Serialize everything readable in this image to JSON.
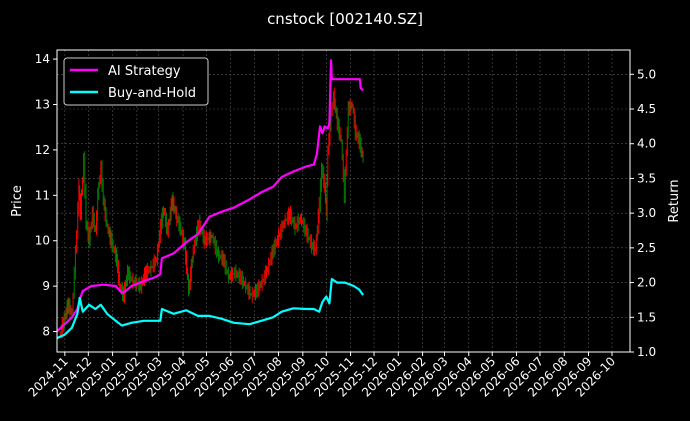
{
  "chart_data": {
    "type": "line",
    "title": "cnstock [002140.SZ]",
    "ylabel_left": "Price",
    "ylabel_right": "Return",
    "xlim": [
      "2024-10-22",
      "2026-10-24"
    ],
    "ylim_left": [
      7.55,
      14.2
    ],
    "ylim_right": [
      1.0,
      5.35
    ],
    "grid": true,
    "legend_position": "top-left",
    "x_ticks": [
      "2024-11",
      "2024-12",
      "2025-01",
      "2025-02",
      "2025-03",
      "2025-04",
      "2025-05",
      "2025-06",
      "2025-07",
      "2025-08",
      "2025-09",
      "2025-10",
      "2025-11",
      "2025-12",
      "2026-01",
      "2026-02",
      "2026-03",
      "2026-04",
      "2026-05",
      "2026-06",
      "2026-07",
      "2026-08",
      "2026-09",
      "2026-10"
    ],
    "y_ticks_left": [
      "8",
      "9",
      "10",
      "11",
      "12",
      "13",
      "14"
    ],
    "y_ticks_right": [
      "1.0",
      "1.5",
      "2.0",
      "2.5",
      "3.0",
      "3.5",
      "4.0",
      "4.5",
      "5.0"
    ],
    "price": {
      "up_color": "#ff0000",
      "down_color": "#008000",
      "dates": [
        "2024-10-25",
        "2024-10-30",
        "2024-11-05",
        "2024-11-10",
        "2024-11-13",
        "2024-11-16",
        "2024-11-19",
        "2024-11-21",
        "2024-11-25",
        "2024-11-28",
        "2024-12-02",
        "2024-12-06",
        "2024-12-10",
        "2024-12-13",
        "2024-12-17",
        "2024-12-20",
        "2024-12-25",
        "2024-12-30",
        "2025-01-06",
        "2025-01-10",
        "2025-01-15",
        "2025-01-20",
        "2025-01-27",
        "2025-02-06",
        "2025-02-12",
        "2025-02-19",
        "2025-02-26",
        "2025-03-03",
        "2025-03-07",
        "2025-03-12",
        "2025-03-18",
        "2025-03-24",
        "2025-03-28",
        "2025-04-03",
        "2025-04-08",
        "2025-04-14",
        "2025-04-21",
        "2025-04-28",
        "2025-05-08",
        "2025-05-15",
        "2025-05-22",
        "2025-05-29",
        "2025-06-06",
        "2025-06-13",
        "2025-06-20",
        "2025-06-27",
        "2025-07-04",
        "2025-07-11",
        "2025-07-18",
        "2025-07-25",
        "2025-08-01",
        "2025-08-08",
        "2025-08-15",
        "2025-08-22",
        "2025-08-29",
        "2025-09-05",
        "2025-09-12",
        "2025-09-17",
        "2025-09-22",
        "2025-09-25",
        "2025-09-29",
        "2025-10-01",
        "2025-10-03",
        "2025-10-07",
        "2025-10-10",
        "2025-10-15",
        "2025-10-20",
        "2025-10-24",
        "2025-10-29",
        "2025-11-03",
        "2025-11-07",
        "2025-11-12",
        "2025-11-17"
      ],
      "close": [
        7.9,
        8.2,
        8.6,
        8.4,
        9.3,
        10.2,
        11.2,
        10.6,
        11.8,
        10.4,
        10.0,
        10.6,
        10.2,
        11.0,
        11.6,
        10.9,
        10.3,
        10.0,
        9.6,
        9.0,
        8.8,
        9.3,
        9.1,
        9.0,
        9.3,
        9.4,
        9.6,
        10.3,
        10.7,
        10.2,
        10.9,
        10.5,
        10.3,
        9.9,
        8.9,
        9.8,
        10.4,
        10.0,
        10.1,
        9.7,
        9.6,
        9.2,
        9.3,
        9.2,
        9.0,
        8.8,
        8.9,
        9.1,
        9.4,
        9.8,
        10.1,
        10.4,
        10.6,
        10.3,
        10.5,
        10.2,
        9.9,
        9.8,
        10.8,
        11.6,
        11.2,
        10.6,
        12.0,
        12.8,
        13.2,
        12.6,
        12.2,
        11.0,
        12.9,
        13.0,
        12.4,
        12.2,
        11.8
      ]
    },
    "series": [
      {
        "name": "AI Strategy",
        "color": "#ff00ff",
        "axis": "right",
        "dates": [
          "2024-10-22",
          "2024-11-01",
          "2024-11-10",
          "2024-11-17",
          "2024-11-20",
          "2024-11-24",
          "2024-12-05",
          "2024-12-20",
          "2025-01-05",
          "2025-01-13",
          "2025-01-18",
          "2025-01-25",
          "2025-02-10",
          "2025-02-25",
          "2025-03-03",
          "2025-03-05",
          "2025-03-20",
          "2025-04-05",
          "2025-04-20",
          "2025-05-05",
          "2025-05-20",
          "2025-06-05",
          "2025-06-25",
          "2025-07-10",
          "2025-07-25",
          "2025-08-05",
          "2025-08-20",
          "2025-09-05",
          "2025-09-15",
          "2025-09-19",
          "2025-09-23",
          "2025-09-26",
          "2025-09-29",
          "2025-10-03",
          "2025-10-05",
          "2025-10-07",
          "2025-10-08",
          "2025-11-13",
          "2025-11-14",
          "2025-11-17"
        ],
        "values": [
          1.3,
          1.4,
          1.5,
          1.62,
          1.75,
          1.88,
          1.95,
          1.97,
          1.95,
          1.85,
          1.88,
          1.95,
          2.02,
          2.08,
          2.12,
          2.35,
          2.42,
          2.58,
          2.7,
          2.95,
          3.02,
          3.08,
          3.2,
          3.3,
          3.38,
          3.52,
          3.6,
          3.67,
          3.7,
          3.85,
          4.25,
          4.15,
          4.25,
          4.22,
          4.3,
          5.2,
          4.93,
          4.93,
          4.8,
          4.77
        ]
      },
      {
        "name": "Buy-and-Hold",
        "color": "#00ffff",
        "axis": "right",
        "dates": [
          "2024-10-22",
          "2024-11-01",
          "2024-11-10",
          "2024-11-17",
          "2024-11-20",
          "2024-11-24",
          "2024-12-02",
          "2024-12-10",
          "2024-12-17",
          "2024-12-25",
          "2025-01-05",
          "2025-01-13",
          "2025-01-25",
          "2025-02-10",
          "2025-02-25",
          "2025-03-03",
          "2025-03-05",
          "2025-03-20",
          "2025-04-05",
          "2025-04-20",
          "2025-05-05",
          "2025-05-20",
          "2025-06-05",
          "2025-06-25",
          "2025-07-10",
          "2025-07-25",
          "2025-08-05",
          "2025-08-20",
          "2025-09-05",
          "2025-09-15",
          "2025-09-22",
          "2025-09-26",
          "2025-10-01",
          "2025-10-05",
          "2025-10-08",
          "2025-10-15",
          "2025-10-25",
          "2025-11-05",
          "2025-11-12",
          "2025-11-17"
        ],
        "values": [
          1.2,
          1.25,
          1.35,
          1.55,
          1.78,
          1.58,
          1.68,
          1.62,
          1.68,
          1.55,
          1.45,
          1.38,
          1.42,
          1.45,
          1.45,
          1.45,
          1.62,
          1.55,
          1.6,
          1.52,
          1.52,
          1.48,
          1.42,
          1.4,
          1.45,
          1.5,
          1.58,
          1.63,
          1.62,
          1.62,
          1.58,
          1.72,
          1.8,
          1.7,
          2.05,
          2.0,
          2.0,
          1.95,
          1.9,
          1.82
        ]
      }
    ]
  }
}
